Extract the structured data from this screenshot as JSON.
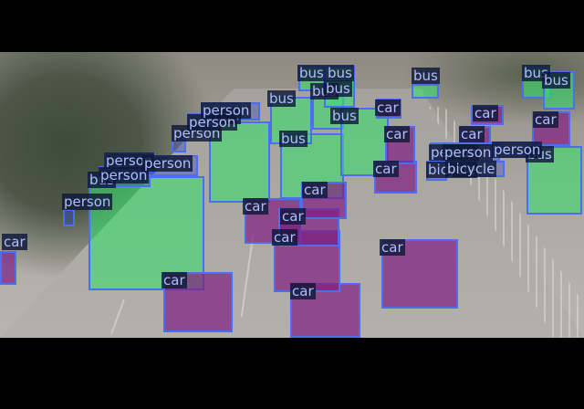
{
  "detections": [
    {
      "label": "bus"
    },
    {
      "label": "bus"
    },
    {
      "label": "bus"
    },
    {
      "label": "bus"
    },
    {
      "label": "bus"
    },
    {
      "label": "bus"
    },
    {
      "label": "bus"
    },
    {
      "label": "bus"
    },
    {
      "label": "bus"
    },
    {
      "label": "bus"
    },
    {
      "label": "bus"
    },
    {
      "label": "bus"
    },
    {
      "label": "bus"
    },
    {
      "label": "car"
    },
    {
      "label": "car"
    },
    {
      "label": "car"
    },
    {
      "label": "car"
    },
    {
      "label": "car"
    },
    {
      "label": "car"
    },
    {
      "label": "car"
    },
    {
      "label": "car"
    },
    {
      "label": "car"
    },
    {
      "label": "car"
    },
    {
      "label": "car"
    },
    {
      "label": "car"
    },
    {
      "label": "car"
    },
    {
      "label": "car"
    },
    {
      "label": "person"
    },
    {
      "label": "person"
    },
    {
      "label": "person"
    },
    {
      "label": "person"
    },
    {
      "label": "person"
    },
    {
      "label": "person"
    },
    {
      "label": "person"
    },
    {
      "label": "person"
    },
    {
      "label": "person"
    },
    {
      "label": "person"
    },
    {
      "label": "bicycle"
    },
    {
      "label": "bicycle"
    }
  ]
}
